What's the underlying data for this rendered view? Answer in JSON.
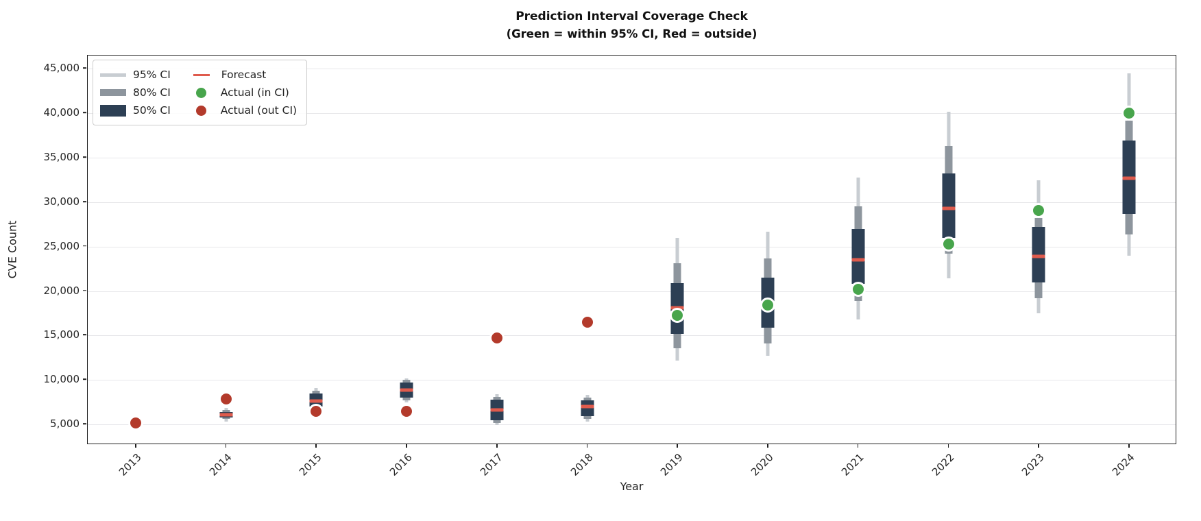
{
  "title": "Prediction Interval Coverage Check",
  "subtitle": "(Green = within 95% CI, Red = outside)",
  "axes": {
    "x_label": "Year",
    "y_label": "CVE Count"
  },
  "legend": {
    "items": [
      {
        "label": "95% CI"
      },
      {
        "label": "80% CI"
      },
      {
        "label": "50% CI"
      },
      {
        "label": "Forecast"
      },
      {
        "label": "Actual (in CI)"
      },
      {
        "label": "Actual (out CI)"
      }
    ]
  },
  "chart_data": {
    "type": "interval-coverage-box",
    "title": "Prediction Interval Coverage Check",
    "subtitle": "(Green = within 95% CI, Red = outside)",
    "xlabel": "Year",
    "ylabel": "CVE Count",
    "ylim": [
      2700,
      46500
    ],
    "grid": "horizontal",
    "legend_position": "upper-left",
    "y_ticks": [
      5000,
      10000,
      15000,
      20000,
      25000,
      30000,
      35000,
      40000,
      45000
    ],
    "y_tick_labels": [
      "5,000",
      "10,000",
      "15,000",
      "20,000",
      "25,000",
      "30,000",
      "35,000",
      "40,000",
      "45,000"
    ],
    "colors": {
      "ci95": "#c8cdd2",
      "ci80": "#8d959d",
      "ci50": "#2d3f54",
      "forecast": "#df5b4d",
      "actual_in": "#48a54c",
      "actual_out": "#b33a2b"
    },
    "series": [
      {
        "year": "2013",
        "ci95": null,
        "ci80": null,
        "ci50": null,
        "forecast": null,
        "actual": 5200,
        "in_ci": false
      },
      {
        "year": "2014",
        "ci95": [
          5300,
          6900
        ],
        "ci80": [
          5600,
          6600
        ],
        "ci50": [
          5800,
          6400
        ],
        "forecast": 6100,
        "actual": 7900,
        "in_ci": false
      },
      {
        "year": "2015",
        "ci95": [
          6600,
          9100
        ],
        "ci80": [
          6800,
          8800
        ],
        "ci50": [
          7000,
          8500
        ],
        "forecast": 7600,
        "actual": 6450,
        "in_ci": false
      },
      {
        "year": "2016",
        "ci95": [
          7500,
          10200
        ],
        "ci80": [
          7700,
          10000
        ],
        "ci50": [
          8000,
          9700
        ],
        "forecast": 8900,
        "actual": 6450,
        "in_ci": false
      },
      {
        "year": "2017",
        "ci95": [
          4900,
          8400
        ],
        "ci80": [
          5200,
          8100
        ],
        "ci50": [
          5500,
          7800
        ],
        "forecast": 6600,
        "actual": 14700,
        "in_ci": false
      },
      {
        "year": "2018",
        "ci95": [
          5300,
          8300
        ],
        "ci80": [
          5600,
          8000
        ],
        "ci50": [
          5900,
          7700
        ],
        "forecast": 7000,
        "actual": 16500,
        "in_ci": false
      },
      {
        "year": "2019",
        "ci95": [
          12200,
          26000
        ],
        "ci80": [
          13600,
          23100
        ],
        "ci50": [
          15200,
          20900
        ],
        "forecast": 18100,
        "actual": 17300,
        "in_ci": true
      },
      {
        "year": "2020",
        "ci95": [
          12700,
          26700
        ],
        "ci80": [
          14100,
          23700
        ],
        "ci50": [
          15900,
          21500
        ],
        "forecast": 18400,
        "actual": 18400,
        "in_ci": true
      },
      {
        "year": "2021",
        "ci95": [
          16800,
          32800
        ],
        "ci80": [
          18900,
          29500
        ],
        "ci50": [
          20800,
          27000
        ],
        "forecast": 23500,
        "actual": 20200,
        "in_ci": true
      },
      {
        "year": "2022",
        "ci95": [
          21400,
          40200
        ],
        "ci80": [
          24200,
          36300
        ],
        "ci50": [
          26000,
          33200
        ],
        "forecast": 29300,
        "actual": 25300,
        "in_ci": true
      },
      {
        "year": "2023",
        "ci95": [
          17500,
          32500
        ],
        "ci80": [
          19200,
          28200
        ],
        "ci50": [
          21000,
          27200
        ],
        "forecast": 23900,
        "actual": 29100,
        "in_ci": true
      },
      {
        "year": "2024",
        "ci95": [
          24000,
          44500
        ],
        "ci80": [
          26400,
          39200
        ],
        "ci50": [
          28700,
          36900
        ],
        "forecast": 32700,
        "actual": 40000,
        "in_ci": true
      }
    ]
  }
}
